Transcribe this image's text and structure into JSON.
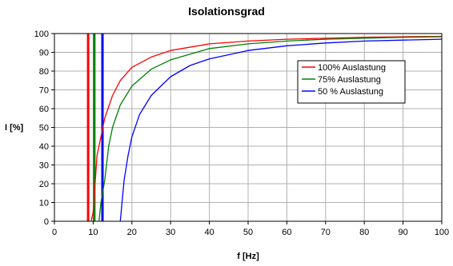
{
  "chart_data": {
    "type": "line",
    "title": "Isolationsgrad",
    "xlabel": "f [Hz]",
    "ylabel": "I [%]",
    "xlim": [
      0,
      100
    ],
    "ylim": [
      0,
      100
    ],
    "xticks": [
      0,
      10,
      20,
      30,
      40,
      50,
      60,
      70,
      80,
      90,
      100
    ],
    "yticks": [
      0,
      10,
      20,
      30,
      40,
      50,
      60,
      70,
      80,
      90,
      100
    ],
    "grid": true,
    "legend_position": "top-right (inside plot)",
    "series": [
      {
        "name": "100% Auslastung",
        "color": "#ff0000",
        "resonance_hz": 8.7,
        "x": [
          9.5,
          10,
          11,
          12,
          13,
          15,
          17,
          20,
          25,
          30,
          40,
          50,
          60,
          70,
          80,
          90,
          100
        ],
        "y": [
          0,
          5,
          35,
          45,
          55,
          67,
          75,
          82,
          87.5,
          91,
          94.5,
          96,
          97,
          97.5,
          98,
          98.3,
          98.5
        ]
      },
      {
        "name": "75% Auslastung",
        "color": "#008000",
        "resonance_hz": 10.3,
        "x": [
          11.5,
          12,
          13,
          14,
          15,
          17,
          20,
          25,
          30,
          40,
          50,
          60,
          70,
          80,
          90,
          100
        ],
        "y": [
          0,
          10,
          22,
          40,
          50,
          62,
          72,
          81,
          86,
          92,
          94.5,
          96,
          97,
          97.5,
          98,
          98.3
        ]
      },
      {
        "name": "50 % Auslastung",
        "color": "#0000ff",
        "resonance_hz": 12.4,
        "x": [
          17,
          18,
          19,
          20,
          22,
          25,
          30,
          35,
          40,
          50,
          60,
          70,
          80,
          90,
          100
        ],
        "y": [
          0,
          22,
          35,
          45,
          57,
          67,
          77,
          83,
          86.5,
          91,
          93.5,
          95,
          96,
          96.5,
          97
        ]
      }
    ]
  }
}
